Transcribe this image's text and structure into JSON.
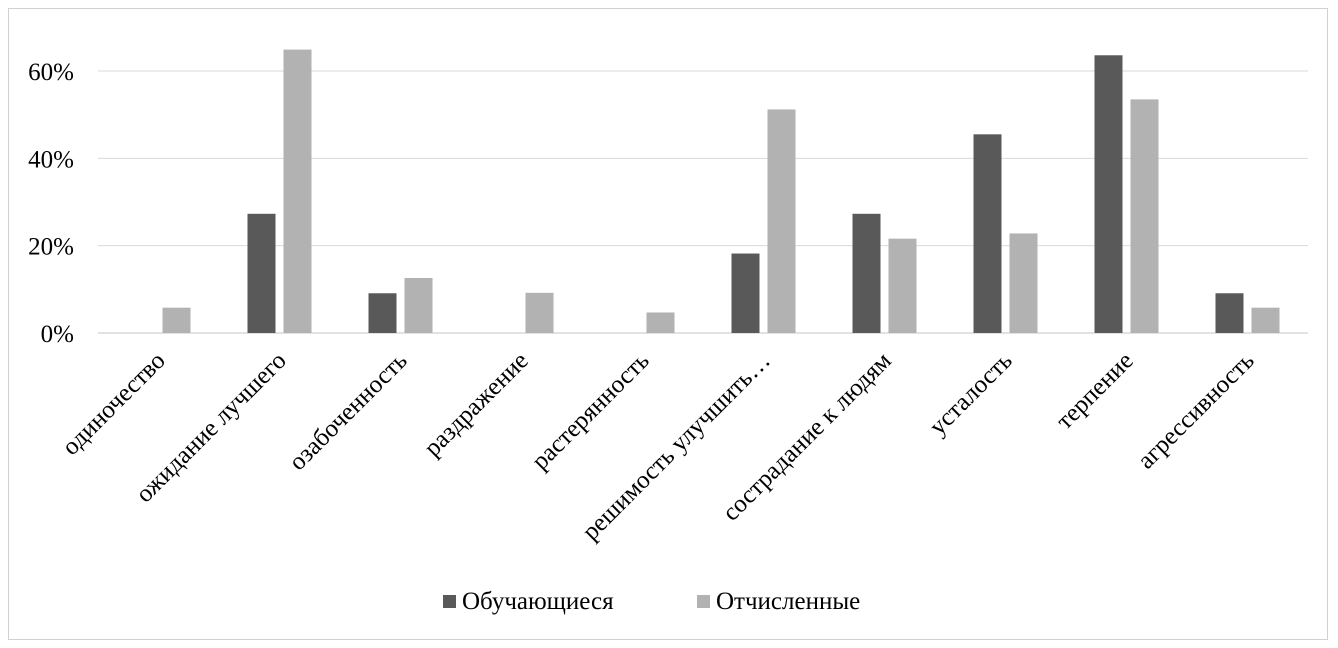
{
  "chart_data": {
    "type": "bar",
    "title": "",
    "xlabel": "",
    "ylabel": "",
    "ylim": [
      0,
      70
    ],
    "yticks": [
      0,
      20,
      40,
      60
    ],
    "ytick_labels": [
      "0%",
      "20%",
      "40%",
      "60%"
    ],
    "grid": true,
    "legend_position": "bottom",
    "categories": [
      "одиночество",
      "ожидание лучшего",
      "озабоченность",
      "раздражение",
      "растерянность",
      "решимость улучшить…",
      "сострадание к людям",
      "усталость",
      "терпение",
      "агрессивность"
    ],
    "series": [
      {
        "name": "Обучающиеся",
        "color": "#595959",
        "values": [
          0,
          27.3,
          9.1,
          0,
          0,
          18.2,
          27.3,
          45.5,
          63.6,
          9.1
        ]
      },
      {
        "name": "Отчисленные",
        "color": "#b2b2b2",
        "values": [
          5.8,
          64.9,
          12.6,
          9.2,
          4.7,
          51.2,
          21.6,
          22.8,
          53.5,
          5.8
        ]
      }
    ]
  }
}
